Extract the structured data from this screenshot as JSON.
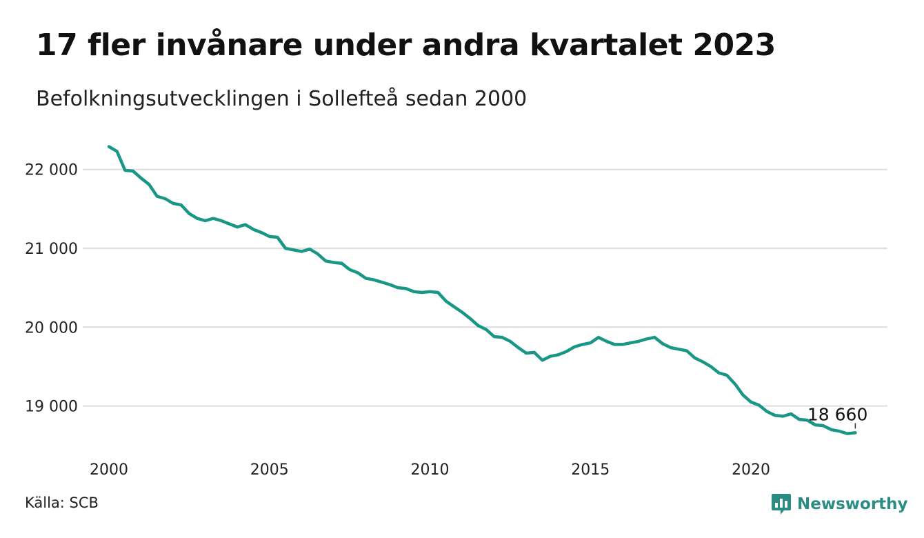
{
  "title": "17 fler invånare under andra kvartalet 2023",
  "subtitle": "Befolkningsutvecklingen i Sollefteå sedan 2000",
  "source": "Källa: SCB",
  "brand": {
    "name": "Newsworthy",
    "icon": "newsworthy-logo-icon"
  },
  "colors": {
    "line": "#1a9686",
    "grid": "#dddddd",
    "brand": "#2b8c84"
  },
  "chart_data": {
    "type": "line",
    "title": "17 fler invånare under andra kvartalet 2023",
    "subtitle": "Befolkningsutvecklingen i Sollefteå sedan 2000",
    "xlabel": "",
    "ylabel": "",
    "x_ticks": [
      2000,
      2005,
      2010,
      2015,
      2020
    ],
    "x_tick_labels": [
      "2000",
      "2005",
      "2010",
      "2015",
      "2020"
    ],
    "y_ticks": [
      19000,
      20000,
      21000,
      22000
    ],
    "y_tick_labels": [
      "19 000",
      "20 000",
      "21 000",
      "22 000"
    ],
    "xlim": [
      2000,
      2023.5
    ],
    "ylim": [
      18550,
      22400
    ],
    "grid": true,
    "end_label": "18 660",
    "series": [
      {
        "values": [
          [
            2000.0,
            22290
          ],
          [
            2000.25,
            22230
          ],
          [
            2000.5,
            21990
          ],
          [
            2000.75,
            21980
          ],
          [
            2001.0,
            21890
          ],
          [
            2001.25,
            21810
          ],
          [
            2001.5,
            21660
          ],
          [
            2001.75,
            21630
          ],
          [
            2002.0,
            21570
          ],
          [
            2002.25,
            21550
          ],
          [
            2002.5,
            21440
          ],
          [
            2002.75,
            21380
          ],
          [
            2003.0,
            21350
          ],
          [
            2003.25,
            21380
          ],
          [
            2003.5,
            21350
          ],
          [
            2003.75,
            21310
          ],
          [
            2004.0,
            21270
          ],
          [
            2004.25,
            21300
          ],
          [
            2004.5,
            21240
          ],
          [
            2004.75,
            21200
          ],
          [
            2005.0,
            21150
          ],
          [
            2005.25,
            21140
          ],
          [
            2005.5,
            21000
          ],
          [
            2005.75,
            20980
          ],
          [
            2006.0,
            20960
          ],
          [
            2006.25,
            20990
          ],
          [
            2006.5,
            20930
          ],
          [
            2006.75,
            20840
          ],
          [
            2007.0,
            20820
          ],
          [
            2007.25,
            20810
          ],
          [
            2007.5,
            20730
          ],
          [
            2007.75,
            20690
          ],
          [
            2008.0,
            20620
          ],
          [
            2008.25,
            20600
          ],
          [
            2008.5,
            20570
          ],
          [
            2008.75,
            20540
          ],
          [
            2009.0,
            20500
          ],
          [
            2009.25,
            20490
          ],
          [
            2009.5,
            20450
          ],
          [
            2009.75,
            20440
          ],
          [
            2010.0,
            20450
          ],
          [
            2010.25,
            20440
          ],
          [
            2010.5,
            20330
          ],
          [
            2010.75,
            20260
          ],
          [
            2011.0,
            20190
          ],
          [
            2011.25,
            20110
          ],
          [
            2011.5,
            20020
          ],
          [
            2011.75,
            19970
          ],
          [
            2012.0,
            19880
          ],
          [
            2012.25,
            19870
          ],
          [
            2012.5,
            19820
          ],
          [
            2012.75,
            19740
          ],
          [
            2013.0,
            19670
          ],
          [
            2013.25,
            19680
          ],
          [
            2013.5,
            19580
          ],
          [
            2013.75,
            19630
          ],
          [
            2014.0,
            19650
          ],
          [
            2014.25,
            19690
          ],
          [
            2014.5,
            19750
          ],
          [
            2014.75,
            19780
          ],
          [
            2015.0,
            19800
          ],
          [
            2015.25,
            19870
          ],
          [
            2015.5,
            19820
          ],
          [
            2015.75,
            19780
          ],
          [
            2016.0,
            19780
          ],
          [
            2016.25,
            19800
          ],
          [
            2016.5,
            19820
          ],
          [
            2016.75,
            19850
          ],
          [
            2017.0,
            19870
          ],
          [
            2017.25,
            19790
          ],
          [
            2017.5,
            19740
          ],
          [
            2017.75,
            19720
          ],
          [
            2018.0,
            19700
          ],
          [
            2018.25,
            19610
          ],
          [
            2018.5,
            19560
          ],
          [
            2018.75,
            19500
          ],
          [
            2019.0,
            19420
          ],
          [
            2019.25,
            19390
          ],
          [
            2019.5,
            19280
          ],
          [
            2019.75,
            19140
          ],
          [
            2020.0,
            19050
          ],
          [
            2020.25,
            19010
          ],
          [
            2020.5,
            18930
          ],
          [
            2020.75,
            18880
          ],
          [
            2021.0,
            18870
          ],
          [
            2021.25,
            18900
          ],
          [
            2021.5,
            18830
          ],
          [
            2021.75,
            18820
          ],
          [
            2022.0,
            18760
          ],
          [
            2022.25,
            18750
          ],
          [
            2022.5,
            18700
          ],
          [
            2022.75,
            18680
          ],
          [
            2023.0,
            18650
          ],
          [
            2023.25,
            18660
          ]
        ]
      }
    ]
  }
}
